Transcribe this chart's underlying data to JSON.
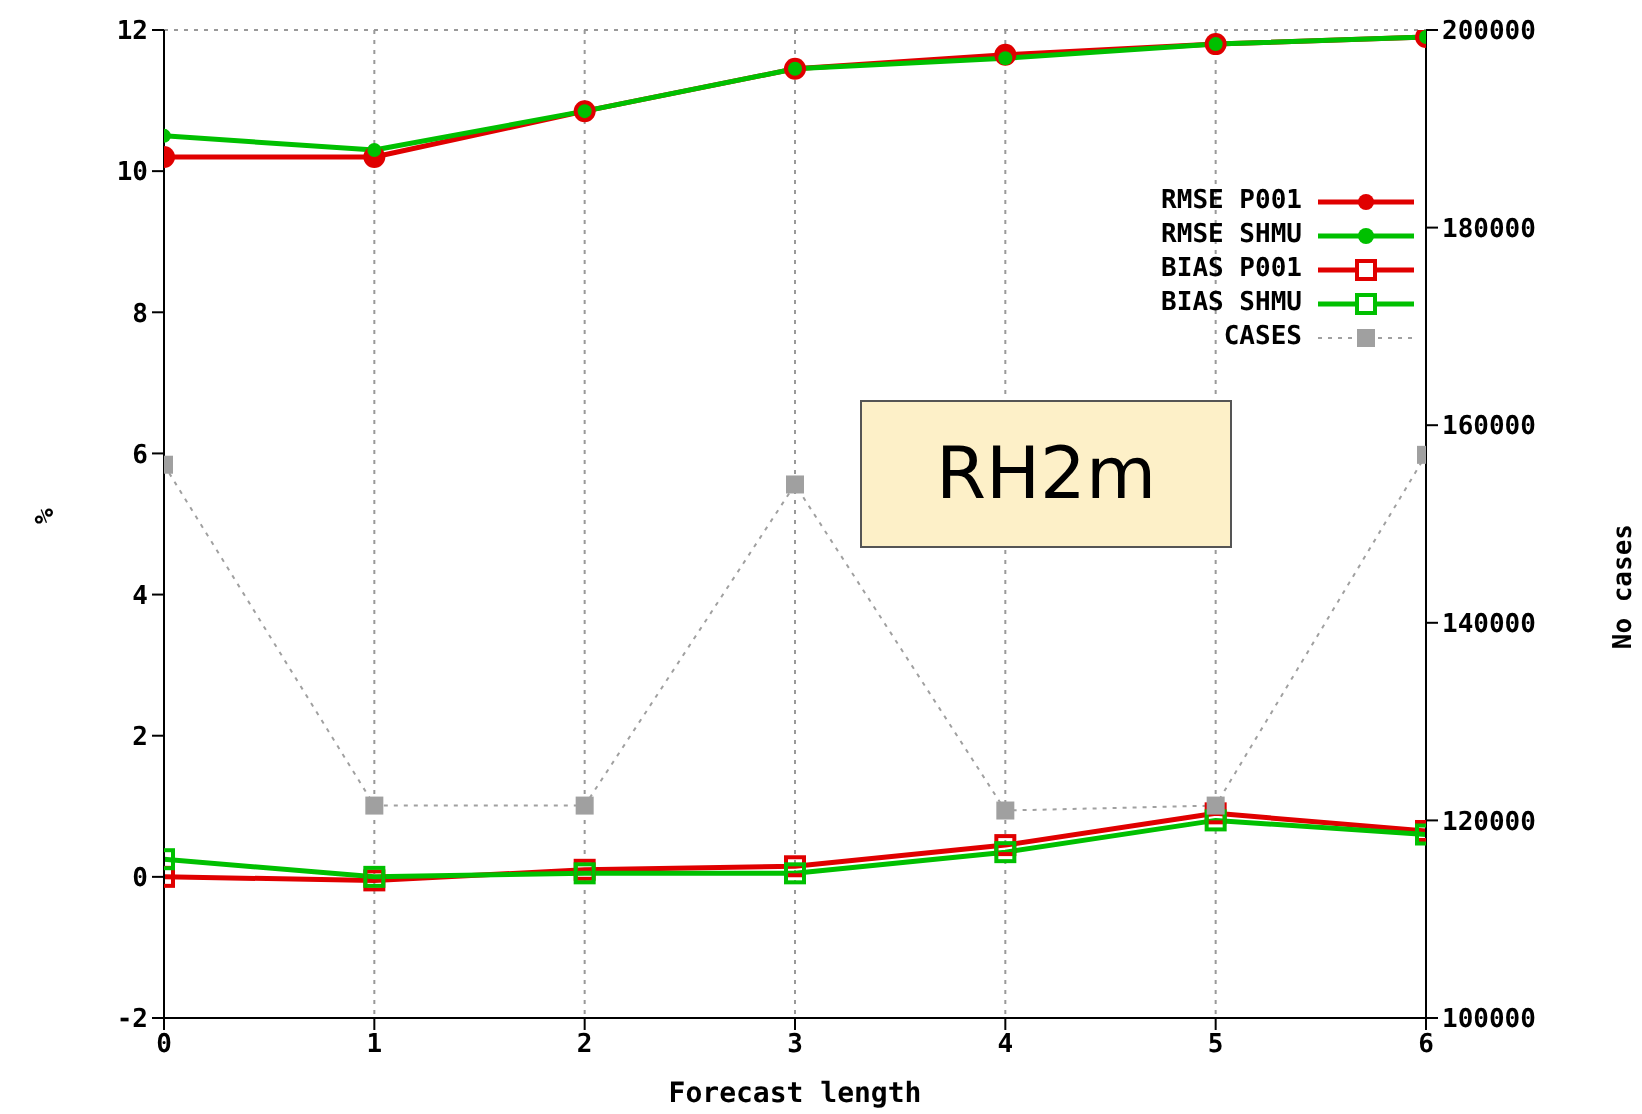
{
  "chart_data": {
    "type": "line",
    "xlabel": "Forecast length",
    "ylabel": "%",
    "y2label": "No cases",
    "annotations": [
      "RH2m"
    ],
    "x": [
      0,
      1,
      2,
      3,
      4,
      5,
      6
    ],
    "series": [
      {
        "name": "RMSE P001",
        "color": "#e00000",
        "values": [
          10.2,
          10.2,
          10.85,
          11.45,
          11.65,
          11.8,
          11.9
        ],
        "marker": "circle"
      },
      {
        "name": "RMSE SHMU",
        "color": "#00c000",
        "values": [
          10.5,
          10.3,
          10.85,
          11.45,
          11.6,
          11.8,
          11.9
        ],
        "marker": "circle"
      },
      {
        "name": "BIAS P001",
        "color": "#e00000",
        "values": [
          0,
          -0.05,
          0.1,
          0.15,
          0.45,
          0.9,
          0.65
        ],
        "marker": "square"
      },
      {
        "name": "BIAS SHMU",
        "color": "#00c000",
        "values": [
          0.25,
          0,
          0.05,
          0.05,
          0.35,
          0.8,
          0.6
        ],
        "marker": "square"
      },
      {
        "name": "CASES",
        "color": "#a0a0a0",
        "values": [
          156000,
          121500,
          121500,
          154000,
          121000,
          121500,
          157000
        ],
        "marker": "square",
        "axis": "y2",
        "line_style": "dotted"
      }
    ],
    "xlim": [
      0,
      6
    ],
    "xticks": [
      0,
      1,
      2,
      3,
      4,
      5,
      6
    ],
    "ylim": [
      -2,
      12
    ],
    "yticks": [
      -2,
      0,
      2,
      4,
      6,
      8,
      10,
      12
    ],
    "y2lim": [
      100000,
      200000
    ],
    "y2ticks": [
      100000,
      120000,
      140000,
      160000,
      180000,
      200000
    ],
    "grid": true,
    "legend": "top right",
    "line_style": "solid"
  }
}
